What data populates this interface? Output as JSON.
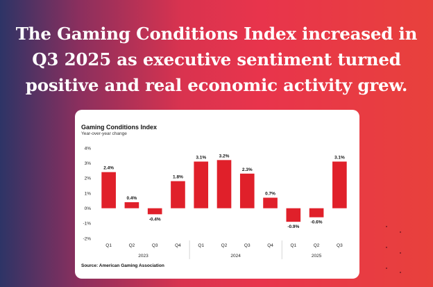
{
  "headline": "The Gaming Conditions Index increased in Q3 2025 as executive sentiment turned positive and real economic activity grew.",
  "card": {
    "title": "Gaming Conditions Index",
    "subtitle": "Year-over-year change",
    "source": "Source: American Gaming Association"
  },
  "colors": {
    "bar": "#e0202a",
    "background_accent": "#e8344c",
    "card": "#ffffff"
  },
  "chart_data": {
    "type": "bar",
    "title": "Gaming Conditions Index",
    "subtitle": "Year-over-year change",
    "categories": [
      "Q1",
      "Q2",
      "Q3",
      "Q4",
      "Q1",
      "Q2",
      "Q3",
      "Q4",
      "Q1",
      "Q2",
      "Q3"
    ],
    "groups": [
      {
        "label": "2023",
        "span": [
          0,
          3
        ]
      },
      {
        "label": "2024",
        "span": [
          4,
          7
        ]
      },
      {
        "label": "2025",
        "span": [
          8,
          10
        ]
      }
    ],
    "values": [
      2.4,
      0.4,
      -0.4,
      1.8,
      3.1,
      3.2,
      2.3,
      0.7,
      -0.9,
      -0.6,
      3.1
    ],
    "data_labels": [
      "2.4%",
      "0.4%",
      "-0.4%",
      "1.8%",
      "3.1%",
      "3.2%",
      "2.3%",
      "0.7%",
      "-0.9%",
      "-0.6%",
      "3.1%"
    ],
    "yticks": [
      "4%",
      "3%",
      "2%",
      "1%",
      "0%",
      "-1%",
      "-2%"
    ],
    "ytick_values": [
      4,
      3,
      2,
      1,
      0,
      -1,
      -2
    ],
    "ylim": [
      -2,
      4
    ],
    "xlabel": "",
    "ylabel": "",
    "grid": false,
    "legend": "none"
  }
}
